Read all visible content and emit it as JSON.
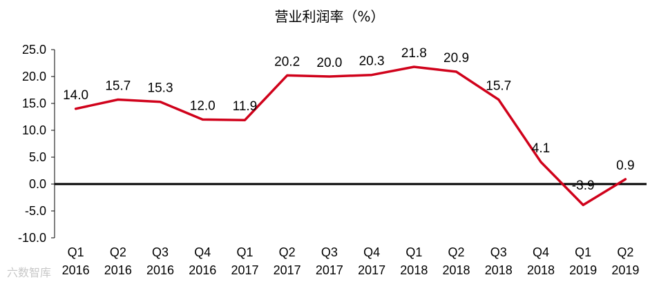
{
  "watermark": "六数智库",
  "chart_data": {
    "type": "line",
    "title": "营业利润率（%）",
    "xlabel": "",
    "ylabel": "",
    "ylim": [
      -10,
      25
    ],
    "yticks": [
      "25.0",
      "20.0",
      "15.0",
      "10.0",
      "5.0",
      "0.0",
      "-5.0",
      "-10.0"
    ],
    "ytick_values": [
      25,
      20,
      15,
      10,
      5,
      0,
      -5,
      -10
    ],
    "categories": [
      [
        "Q1",
        "2016"
      ],
      [
        "Q2",
        "2016"
      ],
      [
        "Q3",
        "2016"
      ],
      [
        "Q4",
        "2016"
      ],
      [
        "Q1",
        "2017"
      ],
      [
        "Q2",
        "2017"
      ],
      [
        "Q3",
        "2017"
      ],
      [
        "Q4",
        "2017"
      ],
      [
        "Q1",
        "2018"
      ],
      [
        "Q2",
        "2018"
      ],
      [
        "Q3",
        "2018"
      ],
      [
        "Q4",
        "2018"
      ],
      [
        "Q1",
        "2019"
      ],
      [
        "Q2",
        "2019"
      ]
    ],
    "values": [
      14.0,
      15.7,
      15.3,
      12.0,
      11.9,
      20.2,
      20.0,
      20.3,
      21.8,
      20.9,
      15.7,
      4.1,
      -3.9,
      0.9
    ],
    "data_labels": [
      "14.0",
      "15.7",
      "15.3",
      "12.0",
      "11.9",
      "20.2",
      "20.0",
      "20.3",
      "21.8",
      "20.9",
      "15.7",
      "4.1",
      "-3.9",
      "0.9"
    ],
    "line_color": "#d0021b",
    "grid": false,
    "legend": "none"
  }
}
